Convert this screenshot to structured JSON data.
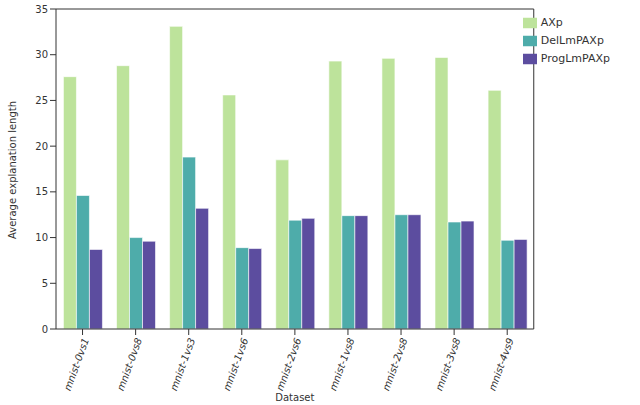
{
  "chart_data": {
    "type": "bar",
    "x_label": "Dataset",
    "y_label": "Average explanation length",
    "categories": [
      "mnist-0vs1",
      "mnist-0vs8",
      "mnist-1vs3",
      "mnist-1vs6",
      "mnist-2vs6",
      "mnist-1vs8",
      "mnist-2vs8",
      "mnist-3vs8",
      "mnist-4vs9"
    ],
    "series": [
      {
        "name": "AXp",
        "color": "#bde39b",
        "values": [
          27.6,
          28.8,
          33.1,
          25.6,
          18.5,
          29.3,
          29.6,
          29.7,
          26.1
        ]
      },
      {
        "name": "DelLmPAXp",
        "color": "#4eacaa",
        "values": [
          14.6,
          10.0,
          18.8,
          8.9,
          11.9,
          12.4,
          12.5,
          11.7,
          9.7
        ]
      },
      {
        "name": "ProgLmPAXp",
        "color": "#5c4d9f",
        "values": [
          8.7,
          9.6,
          13.2,
          8.8,
          12.1,
          12.4,
          12.5,
          11.8,
          9.8
        ]
      }
    ],
    "ylim": [
      0,
      35
    ],
    "yticks": [
      0,
      5,
      10,
      15,
      20,
      25,
      30,
      35
    ],
    "grid": false,
    "legend": "upper right"
  }
}
